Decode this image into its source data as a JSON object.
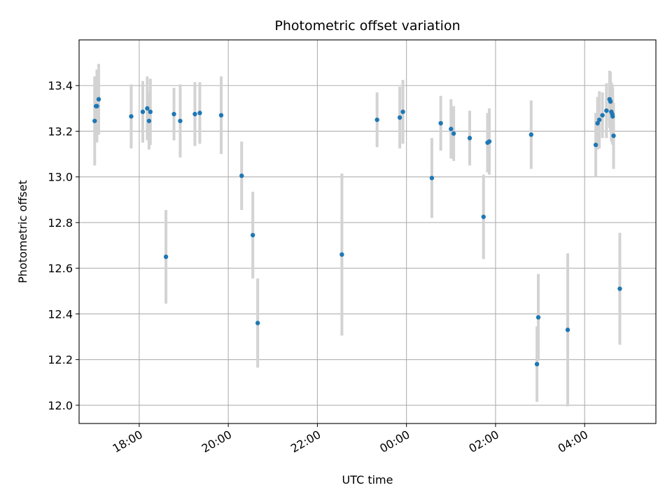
{
  "chart_data": {
    "type": "scatter",
    "title": "Photometric offset variation",
    "xlabel": "UTC time",
    "ylabel": "Photometric offset",
    "x_unit": "hours since 00:00 UTC (negative = previous day)",
    "xlim": [
      -7.35,
      5.6
    ],
    "ylim": [
      11.92,
      13.6
    ],
    "grid": true,
    "x_ticks": [
      {
        "value": -6,
        "label": "18:00"
      },
      {
        "value": -4,
        "label": "20:00"
      },
      {
        "value": -2,
        "label": "22:00"
      },
      {
        "value": 0,
        "label": "00:00"
      },
      {
        "value": 2,
        "label": "02:00"
      },
      {
        "value": 4,
        "label": "04:00"
      }
    ],
    "y_ticks": [
      {
        "value": 12.0,
        "label": "12.0"
      },
      {
        "value": 12.2,
        "label": "12.2"
      },
      {
        "value": 12.4,
        "label": "12.4"
      },
      {
        "value": 12.6,
        "label": "12.6"
      },
      {
        "value": 12.8,
        "label": "12.8"
      },
      {
        "value": 13.0,
        "label": "13.0"
      },
      {
        "value": 13.2,
        "label": "13.2"
      },
      {
        "value": 13.4,
        "label": "13.4"
      }
    ],
    "marker_color": "#1f77b4",
    "errorbar_color": "#d3d3d3",
    "series": [
      {
        "name": "Photometric offset",
        "points": [
          {
            "x": -7.0,
            "y": 13.245,
            "err": 0.195
          },
          {
            "x": -6.97,
            "y": 13.31,
            "err": 0.13
          },
          {
            "x": -6.95,
            "y": 13.31,
            "err": 0.16
          },
          {
            "x": -6.91,
            "y": 13.34,
            "err": 0.155
          },
          {
            "x": -6.18,
            "y": 13.265,
            "err": 0.14
          },
          {
            "x": -5.92,
            "y": 13.285,
            "err": 0.135
          },
          {
            "x": -5.82,
            "y": 13.3,
            "err": 0.14
          },
          {
            "x": -5.78,
            "y": 13.245,
            "err": 0.125
          },
          {
            "x": -5.75,
            "y": 13.285,
            "err": 0.145
          },
          {
            "x": -5.4,
            "y": 12.65,
            "err": 0.205
          },
          {
            "x": -5.22,
            "y": 13.275,
            "err": 0.115
          },
          {
            "x": -5.08,
            "y": 13.245,
            "err": 0.16
          },
          {
            "x": -4.75,
            "y": 13.275,
            "err": 0.14
          },
          {
            "x": -4.64,
            "y": 13.28,
            "err": 0.135
          },
          {
            "x": -4.16,
            "y": 13.27,
            "err": 0.17
          },
          {
            "x": -3.7,
            "y": 13.005,
            "err": 0.15
          },
          {
            "x": -3.45,
            "y": 12.745,
            "err": 0.19
          },
          {
            "x": -3.34,
            "y": 12.36,
            "err": 0.195
          },
          {
            "x": -1.45,
            "y": 12.66,
            "err": 0.355
          },
          {
            "x": -0.66,
            "y": 13.25,
            "err": 0.12
          },
          {
            "x": -0.15,
            "y": 13.26,
            "err": 0.135
          },
          {
            "x": -0.08,
            "y": 13.285,
            "err": 0.14
          },
          {
            "x": 0.57,
            "y": 12.995,
            "err": 0.175
          },
          {
            "x": 0.77,
            "y": 13.235,
            "err": 0.12
          },
          {
            "x": 1.0,
            "y": 13.21,
            "err": 0.13
          },
          {
            "x": 1.06,
            "y": 13.19,
            "err": 0.12
          },
          {
            "x": 1.42,
            "y": 13.17,
            "err": 0.12
          },
          {
            "x": 1.73,
            "y": 12.825,
            "err": 0.185
          },
          {
            "x": 1.82,
            "y": 13.15,
            "err": 0.13
          },
          {
            "x": 1.86,
            "y": 13.155,
            "err": 0.145
          },
          {
            "x": 2.8,
            "y": 13.185,
            "err": 0.15
          },
          {
            "x": 2.93,
            "y": 12.18,
            "err": 0.165
          },
          {
            "x": 2.96,
            "y": 12.385,
            "err": 0.19
          },
          {
            "x": 3.62,
            "y": 12.33,
            "err": 0.335
          },
          {
            "x": 4.25,
            "y": 13.14,
            "err": 0.14
          },
          {
            "x": 4.29,
            "y": 13.235,
            "err": 0.115
          },
          {
            "x": 4.33,
            "y": 13.25,
            "err": 0.125
          },
          {
            "x": 4.4,
            "y": 13.27,
            "err": 0.1
          },
          {
            "x": 4.49,
            "y": 13.29,
            "err": 0.12
          },
          {
            "x": 4.56,
            "y": 13.34,
            "err": 0.125
          },
          {
            "x": 4.58,
            "y": 13.33,
            "err": 0.13
          },
          {
            "x": 4.6,
            "y": 13.285,
            "err": 0.13
          },
          {
            "x": 4.62,
            "y": 13.275,
            "err": 0.13
          },
          {
            "x": 4.63,
            "y": 13.265,
            "err": 0.125
          },
          {
            "x": 4.65,
            "y": 13.18,
            "err": 0.145
          },
          {
            "x": 4.79,
            "y": 12.51,
            "err": 0.245
          }
        ]
      }
    ]
  }
}
